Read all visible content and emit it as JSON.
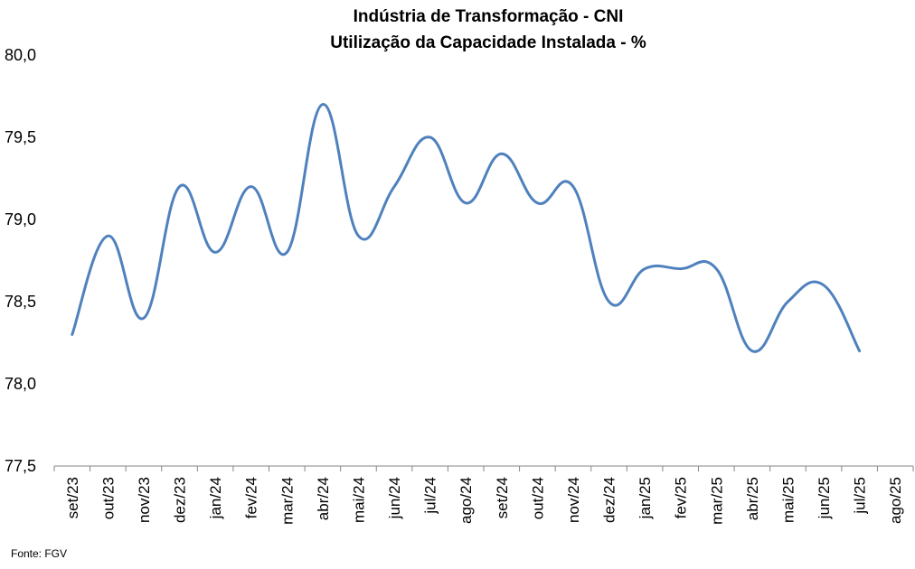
{
  "chart_data": {
    "type": "line",
    "title": "Indústria de Transformação - CNI",
    "subtitle": "Utilização da Capacidade Instalada - %",
    "xlabel": "",
    "ylabel": "",
    "categories": [
      "set/23",
      "out/23",
      "nov/23",
      "dez/23",
      "jan/24",
      "fev/24",
      "mar/24",
      "abr/24",
      "mai/24",
      "jun/24",
      "jul/24",
      "ago/24",
      "set/24",
      "out/24",
      "nov/24",
      "dez/24",
      "jan/25",
      "fev/25",
      "mar/25",
      "abr/25",
      "mai/25",
      "jun/25",
      "jul/25",
      "ago/25"
    ],
    "series": [
      {
        "values": [
          78.3,
          78.9,
          78.4,
          79.2,
          78.8,
          79.2,
          78.8,
          79.7,
          78.9,
          79.2,
          79.5,
          79.1,
          79.4,
          79.1,
          79.2,
          78.5,
          78.7,
          78.7,
          78.7,
          78.2,
          78.5,
          78.6,
          78.2,
          null
        ],
        "color": "#4f81bd"
      }
    ],
    "ylim": [
      77.5,
      80.0
    ],
    "yticks": [
      "77,5",
      "78,0",
      "78,5",
      "79,0",
      "79,5",
      "80,0"
    ],
    "grid": false,
    "legend": "none",
    "source": "Fonte: FGV"
  }
}
